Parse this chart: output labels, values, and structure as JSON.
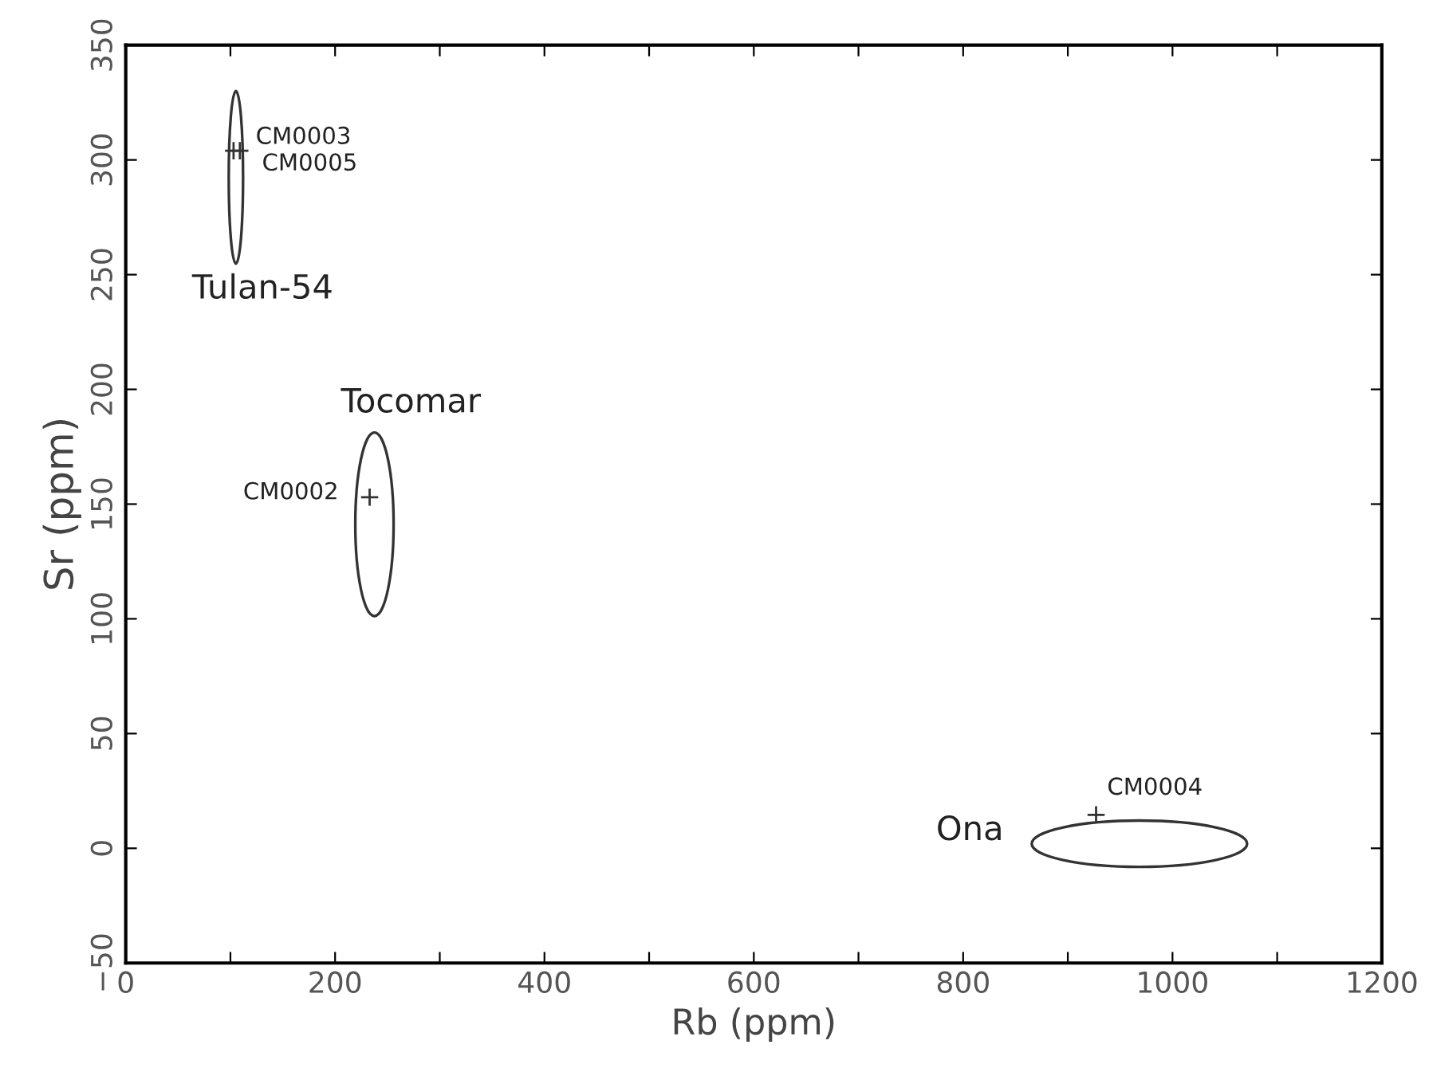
{
  "chart_data": {
    "type": "scatter",
    "xlabel": "Rb (ppm)",
    "ylabel": "Sr (ppm)",
    "xlim": [
      0,
      1200
    ],
    "ylim": [
      -50,
      350
    ],
    "xticks": [
      0,
      {
        "value": 100,
        "label": null
      },
      200,
      {
        "value": 300,
        "label": null
      },
      400,
      {
        "value": 500,
        "label": null
      },
      600,
      {
        "value": 700,
        "label": null
      },
      800,
      {
        "value": 900,
        "label": null
      },
      1000,
      {
        "value": 1100,
        "label": null
      },
      1200
    ],
    "yticks": [
      {
        "value": -50,
        "label": "−50"
      },
      0,
      50,
      100,
      150,
      200,
      250,
      300,
      350
    ],
    "grid": false,
    "marker": "cross",
    "series": [
      {
        "color": "#333333",
        "x": [
          103,
          109,
          233,
          927
        ],
        "values": [
          304,
          304,
          153,
          14.6
        ]
      }
    ],
    "annotations": [
      {
        "text": "CM0003",
        "x": 103,
        "y": 304
      },
      {
        "text": "CM0005",
        "x": 109,
        "y": 304
      },
      {
        "text": "CM0002",
        "x": 233,
        "y": 153
      },
      {
        "text": "CM0004",
        "x": 927,
        "y": 14.6
      },
      "Tulan-54",
      "Tocomar",
      "Ona"
    ]
  }
}
